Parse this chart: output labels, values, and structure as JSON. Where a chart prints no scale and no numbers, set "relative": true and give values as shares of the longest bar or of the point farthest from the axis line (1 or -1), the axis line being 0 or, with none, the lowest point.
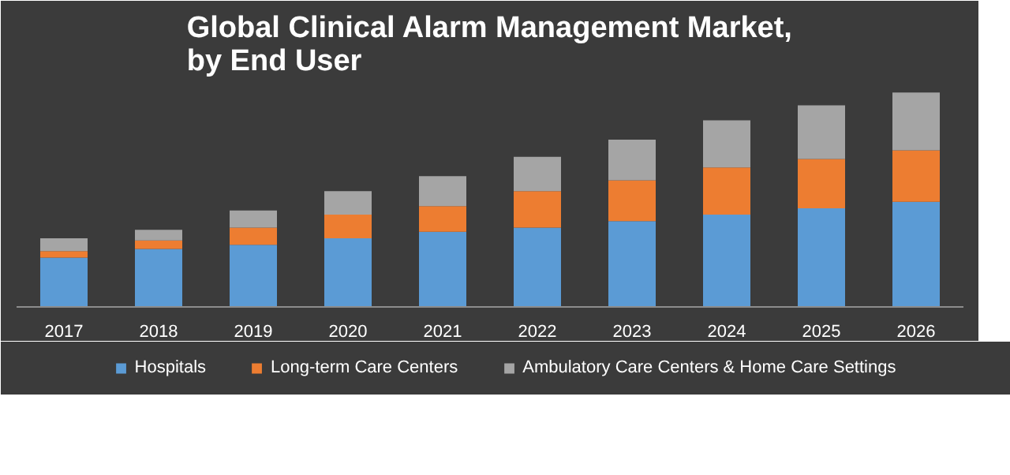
{
  "chart_data": {
    "type": "bar",
    "title": "Global Clinical Alarm Management Market,\nby End User",
    "categories": [
      "2017",
      "2018",
      "2019",
      "2020",
      "2021",
      "2022",
      "2023",
      "2024",
      "2025",
      "2026"
    ],
    "stacked": true,
    "relative": true,
    "legend": "bottom",
    "grid": false,
    "series": [
      {
        "name": "Hospitals",
        "color": "#5b9bd5",
        "values": [
          0.23,
          0.27,
          0.29,
          0.32,
          0.35,
          0.37,
          0.4,
          0.43,
          0.46,
          0.49
        ]
      },
      {
        "name": "Long-term Care Centers",
        "color": "#ed7d31",
        "values": [
          0.03,
          0.04,
          0.08,
          0.11,
          0.12,
          0.17,
          0.19,
          0.22,
          0.23,
          0.24
        ]
      },
      {
        "name": "Ambulatory Care Centers & Home Care Settings",
        "color": "#a5a5a5",
        "values": [
          0.06,
          0.05,
          0.08,
          0.11,
          0.14,
          0.16,
          0.19,
          0.22,
          0.25,
          0.27
        ]
      }
    ]
  }
}
